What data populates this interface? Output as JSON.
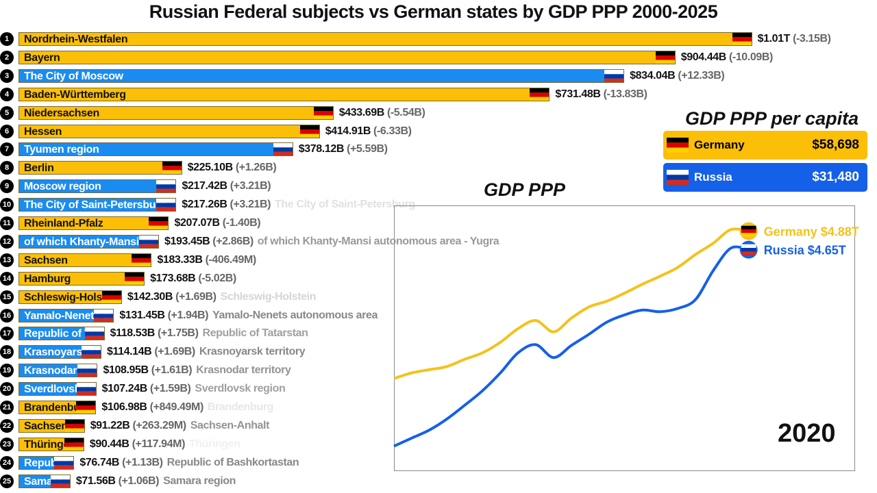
{
  "title": "Russian Federal subjects vs German states by GDP PPP 2000-2025",
  "colors": {
    "germany": "#fbbf07",
    "russia": "#1a8cf0",
    "russia_dark": "#1560e8"
  },
  "chart_data": [
    {
      "type": "bar",
      "units": "billion USD",
      "rows": [
        {
          "rank": "1",
          "label": "Nordrhein-Westfalen",
          "full": "",
          "country": "germany",
          "value": 1010,
          "value_text": "$1.01T",
          "change_text": "(-3.15B)"
        },
        {
          "rank": "2",
          "label": "Bayern",
          "full": "",
          "country": "germany",
          "value": 904.44,
          "value_text": "$904.44B",
          "change_text": "(-10.09B)"
        },
        {
          "rank": "3",
          "label": "The City of Moscow",
          "full": "",
          "country": "russia",
          "value": 834.04,
          "value_text": "$834.04B",
          "change_text": "(+12.33B)"
        },
        {
          "rank": "4",
          "label": "Baden-Württemberg",
          "full": "",
          "country": "germany",
          "value": 731.48,
          "value_text": "$731.48B",
          "change_text": "(-13.83B)"
        },
        {
          "rank": "5",
          "label": "Niedersachsen",
          "full": "",
          "country": "germany",
          "value": 433.69,
          "value_text": "$433.69B",
          "change_text": "(-5.54B)"
        },
        {
          "rank": "6",
          "label": "Hessen",
          "full": "",
          "country": "germany",
          "value": 414.91,
          "value_text": "$414.91B",
          "change_text": "(-6.33B)"
        },
        {
          "rank": "7",
          "label": "Tyumen region",
          "full": "",
          "country": "russia",
          "value": 378.12,
          "value_text": "$378.12B",
          "change_text": "(+5.59B)"
        },
        {
          "rank": "8",
          "label": "Berlin",
          "full": "",
          "country": "germany",
          "value": 225.1,
          "value_text": "$225.10B",
          "change_text": "(+1.26B)"
        },
        {
          "rank": "9",
          "label": "Moscow region",
          "full": "",
          "country": "russia",
          "value": 217.42,
          "value_text": "$217.42B",
          "change_text": "(+3.21B)"
        },
        {
          "rank": "10",
          "label": "The City of Saint-Petersburg",
          "full": "The City of Saint-Petersburg",
          "full_opacity": 0.25,
          "country": "russia",
          "value": 217.26,
          "value_text": "$217.26B",
          "change_text": "(+3.21B)"
        },
        {
          "rank": "11",
          "label": "Rheinland-Pfalz",
          "full": "",
          "country": "germany",
          "value": 207.07,
          "value_text": "$207.07B",
          "change_text": "(-1.40B)"
        },
        {
          "rank": "12",
          "label": "of which Khanty-Mansi autonomous area - Yugra",
          "full": "of which Khanty-Mansi autonomous area - Yugra",
          "full_opacity": 0.85,
          "country": "russia",
          "value": 193.45,
          "value_text": "$193.45B",
          "change_text": "(+2.86B)"
        },
        {
          "rank": "13",
          "label": "Sachsen",
          "full": "",
          "country": "germany",
          "value": 183.33,
          "value_text": "$183.33B",
          "change_text": "(-406.49M)"
        },
        {
          "rank": "14",
          "label": "Hamburg",
          "full": "",
          "country": "germany",
          "value": 173.68,
          "value_text": "$173.68B",
          "change_text": "(-5.02B)"
        },
        {
          "rank": "15",
          "label": "Schleswig-Holstein",
          "full": "Schleswig-Holstein",
          "full_opacity": 0.35,
          "country": "germany",
          "value": 142.3,
          "value_text": "$142.30B",
          "change_text": "(+1.69B)"
        },
        {
          "rank": "16",
          "label": "Yamalo-Nenets autonomous area",
          "full": "Yamalo-Nenets autonomous area",
          "full_opacity": 1,
          "country": "russia",
          "value": 131.45,
          "value_text": "$131.45B",
          "change_text": "(+1.94B)"
        },
        {
          "rank": "17",
          "label": "Republic of Tatarstan",
          "full": "Republic of Tatarstan",
          "full_opacity": 0.8,
          "country": "russia",
          "value": 118.53,
          "value_text": "$118.53B",
          "change_text": "(+1.75B)"
        },
        {
          "rank": "18",
          "label": "Krasnoyarsk territory",
          "full": "Krasnoyarsk territory",
          "full_opacity": 1,
          "country": "russia",
          "value": 114.14,
          "value_text": "$114.14B",
          "change_text": "(+1.69B)"
        },
        {
          "rank": "19",
          "label": "Krasnodar territory",
          "full": "Krasnodar territory",
          "full_opacity": 0.9,
          "country": "russia",
          "value": 108.95,
          "value_text": "$108.95B",
          "change_text": "(+1.61B)"
        },
        {
          "rank": "20",
          "label": "Sverdlovsk region",
          "full": "Sverdlovsk region",
          "full_opacity": 0.8,
          "country": "russia",
          "value": 107.24,
          "value_text": "$107.24B",
          "change_text": "(+1.59B)"
        },
        {
          "rank": "21",
          "label": "Brandenburg",
          "full": "Brandenburg",
          "full_opacity": 0.2,
          "country": "germany",
          "value": 106.98,
          "value_text": "$106.98B",
          "change_text": "(+849.49M)"
        },
        {
          "rank": "22",
          "label": "Sachsen-Anhalt",
          "full": "Sachsen-Anhalt",
          "full_opacity": 0.9,
          "country": "germany",
          "value": 91.22,
          "value_text": "$91.22B",
          "change_text": "(+263.29M)"
        },
        {
          "rank": "23",
          "label": "Thüringen",
          "full": "Thüringen",
          "full_opacity": 0.12,
          "country": "germany",
          "value": 90.44,
          "value_text": "$90.44B",
          "change_text": "(+117.94M)"
        },
        {
          "rank": "24",
          "label": "Republic of Bashkortastan",
          "full": "Republic of Bashkortastan",
          "full_opacity": 1,
          "country": "russia",
          "value": 76.74,
          "value_text": "$76.74B",
          "change_text": "(+1.13B)"
        },
        {
          "rank": "25",
          "label": "Samara region",
          "full": "Samara region",
          "full_opacity": 1,
          "country": "russia",
          "value": 71.56,
          "value_text": "$71.56B",
          "change_text": "(+1.06B)"
        }
      ]
    },
    {
      "type": "line",
      "title": "GDP PPP",
      "units": "trillion USD",
      "x": [
        2000,
        2001,
        2002,
        2003,
        2004,
        2005,
        2006,
        2007,
        2008,
        2009,
        2010,
        2011,
        2012,
        2013,
        2014,
        2015,
        2016,
        2017,
        2018,
        2019,
        2020
      ],
      "xlim": [
        2000,
        2026
      ],
      "ylim": [
        1.9,
        5.2
      ],
      "grid": false,
      "series": [
        {
          "name": "Germany",
          "country": "germany",
          "end_label": "Germany $4.88T",
          "values": [
            3.05,
            3.12,
            3.16,
            3.2,
            3.29,
            3.37,
            3.5,
            3.67,
            3.77,
            3.63,
            3.8,
            3.94,
            4.01,
            4.11,
            4.22,
            4.32,
            4.43,
            4.59,
            4.73,
            4.9,
            4.88
          ]
        },
        {
          "name": "Russia",
          "country": "russia",
          "end_label": "Russia $4.65T",
          "values": [
            2.21,
            2.31,
            2.41,
            2.55,
            2.72,
            2.9,
            3.12,
            3.37,
            3.47,
            3.31,
            3.46,
            3.6,
            3.75,
            3.84,
            3.9,
            3.88,
            3.92,
            4.03,
            4.39,
            4.67,
            4.65
          ]
        }
      ],
      "year_label": "2020"
    }
  ],
  "per_capita": {
    "title": "GDP PPP per capita",
    "items": [
      {
        "country": "germany",
        "name": "Germany",
        "value": "$58,698"
      },
      {
        "country": "russia",
        "name": "Russia",
        "value": "$31,480"
      }
    ]
  }
}
